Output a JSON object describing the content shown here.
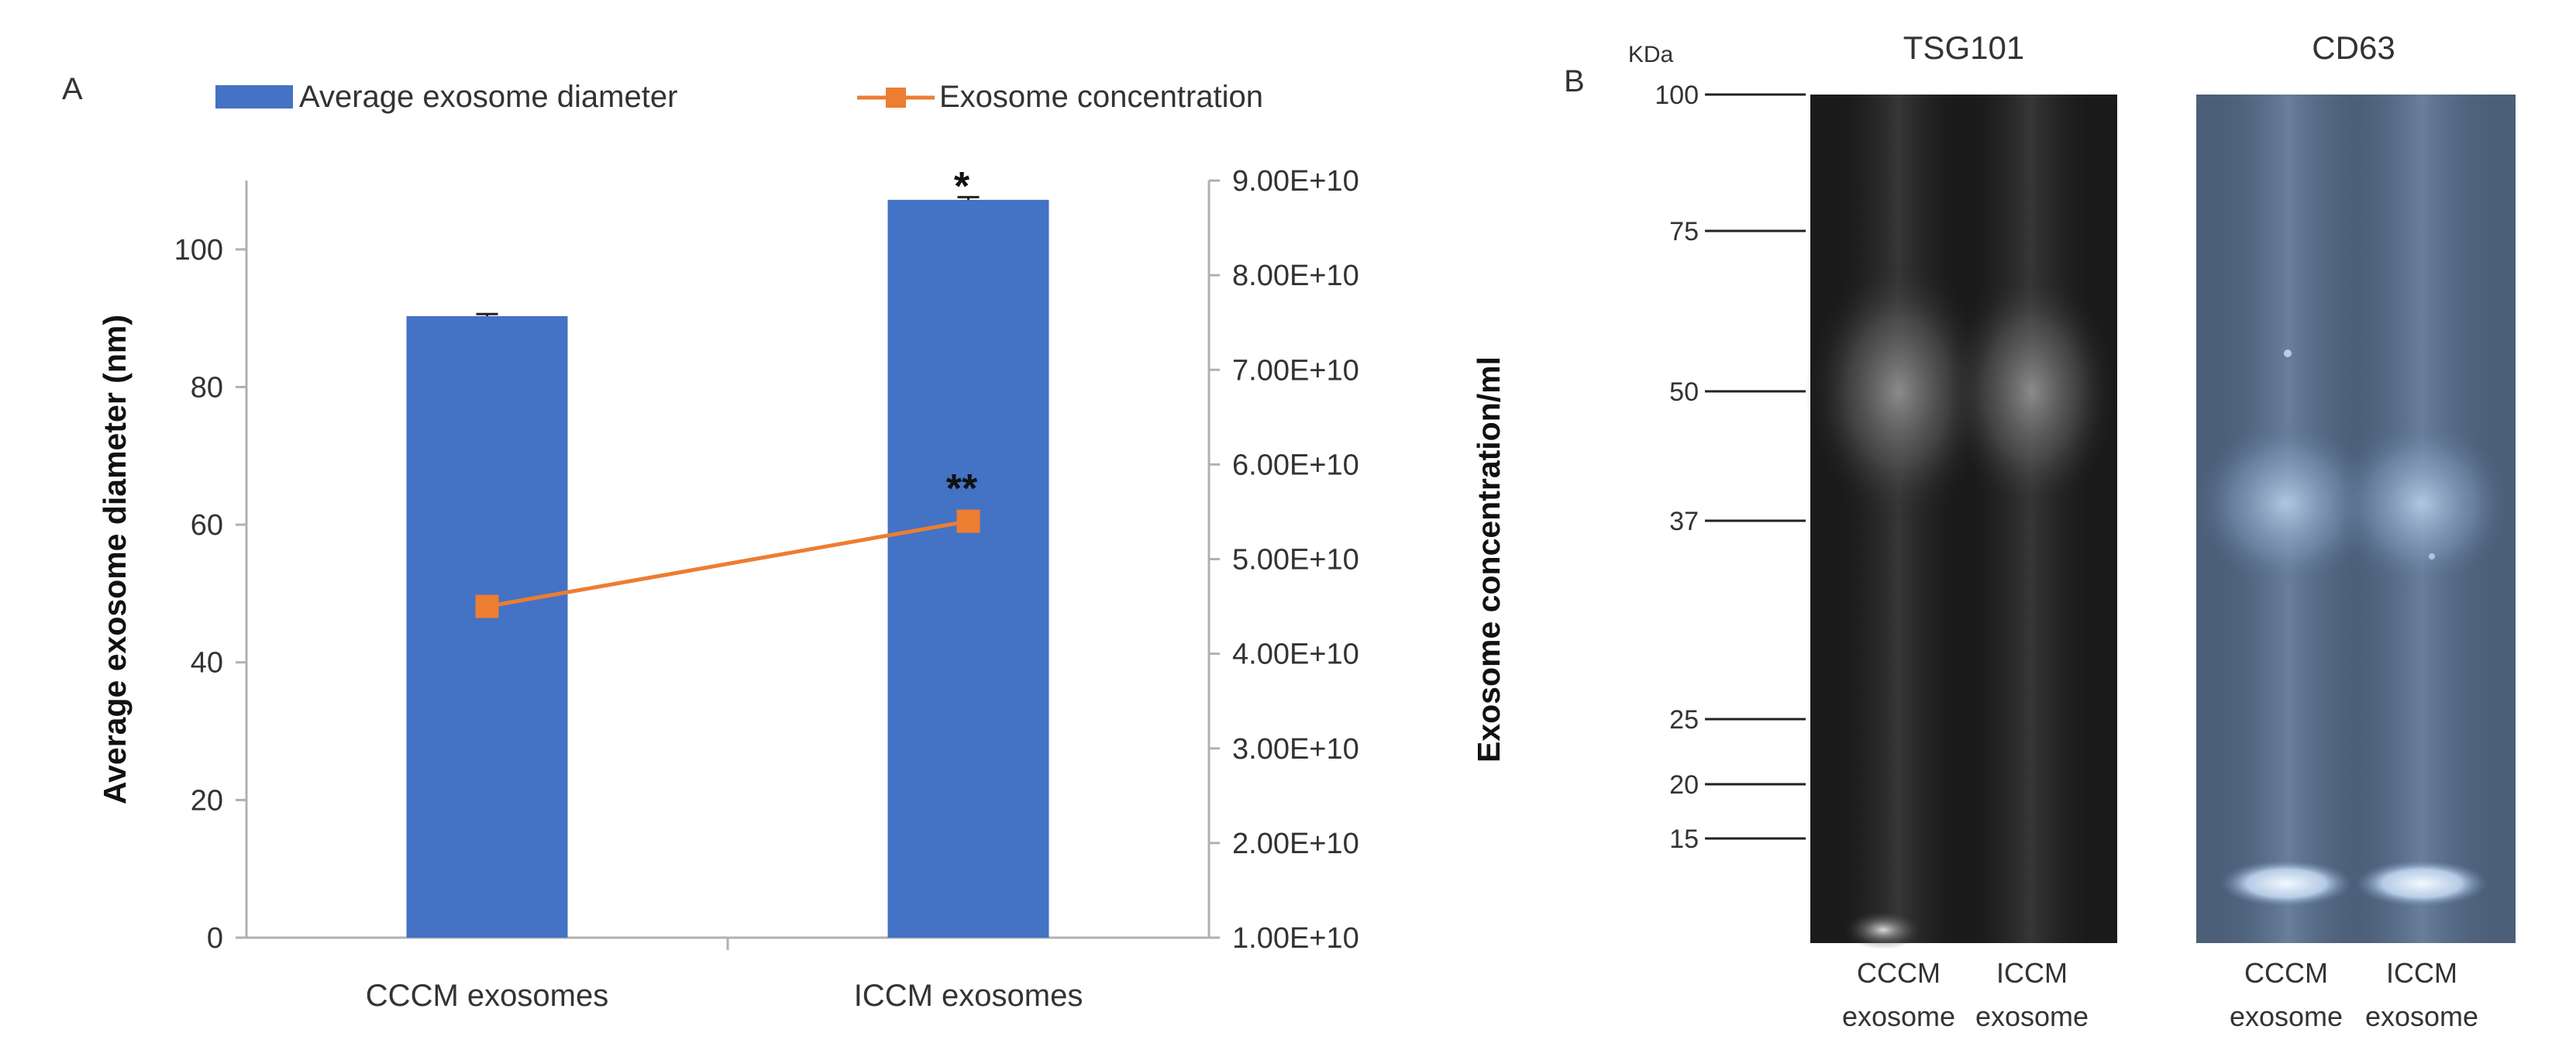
{
  "panel_a_label": "A",
  "panel_b_label": "B",
  "chart_data": {
    "type": "bar",
    "categories": [
      "CCCM exosomes",
      "ICCM exosomes"
    ],
    "series": [
      {
        "name": "Average exosome diameter",
        "type": "bar",
        "axis": "left",
        "values": [
          90.3,
          107.2
        ],
        "color": "#4472c4",
        "error": [
          0.3,
          0.4
        ]
      },
      {
        "name": "Exosome concentration",
        "type": "line",
        "axis": "right",
        "values": [
          45000000000.0,
          54000000000.0
        ],
        "color": "#ed7d31",
        "marker": "square"
      }
    ],
    "ylabel": "Average exosome diameter (nm)",
    "ylim": [
      0,
      110
    ],
    "yticks": [
      "0",
      "20",
      "40",
      "60",
      "80",
      "100"
    ],
    "y2label": "Exosome concentration/ml",
    "y2lim": [
      10000000000.0,
      90000000000.0
    ],
    "y2ticks": [
      "1.00E+10",
      "2.00E+10",
      "3.00E+10",
      "4.00E+10",
      "5.00E+10",
      "6.00E+10",
      "7.00E+10",
      "8.00E+10",
      "9.00E+10"
    ],
    "annotations": {
      "bar_significance": "*",
      "line_significance": "**"
    },
    "legend_position": "top"
  },
  "blot": {
    "kda_label": "KDa",
    "markers": [
      "100",
      "75",
      "50",
      "37",
      "25",
      "20",
      "15"
    ],
    "panels": [
      {
        "title": "TSG101",
        "lanes": [
          {
            "line1": "CCCM",
            "line2": "exosome"
          },
          {
            "line1": "ICCM",
            "line2": "exosome"
          }
        ]
      },
      {
        "title": "CD63",
        "lanes": [
          {
            "line1": "CCCM",
            "line2": "exosome"
          },
          {
            "line1": "ICCM",
            "line2": "exosome"
          }
        ]
      }
    ]
  }
}
